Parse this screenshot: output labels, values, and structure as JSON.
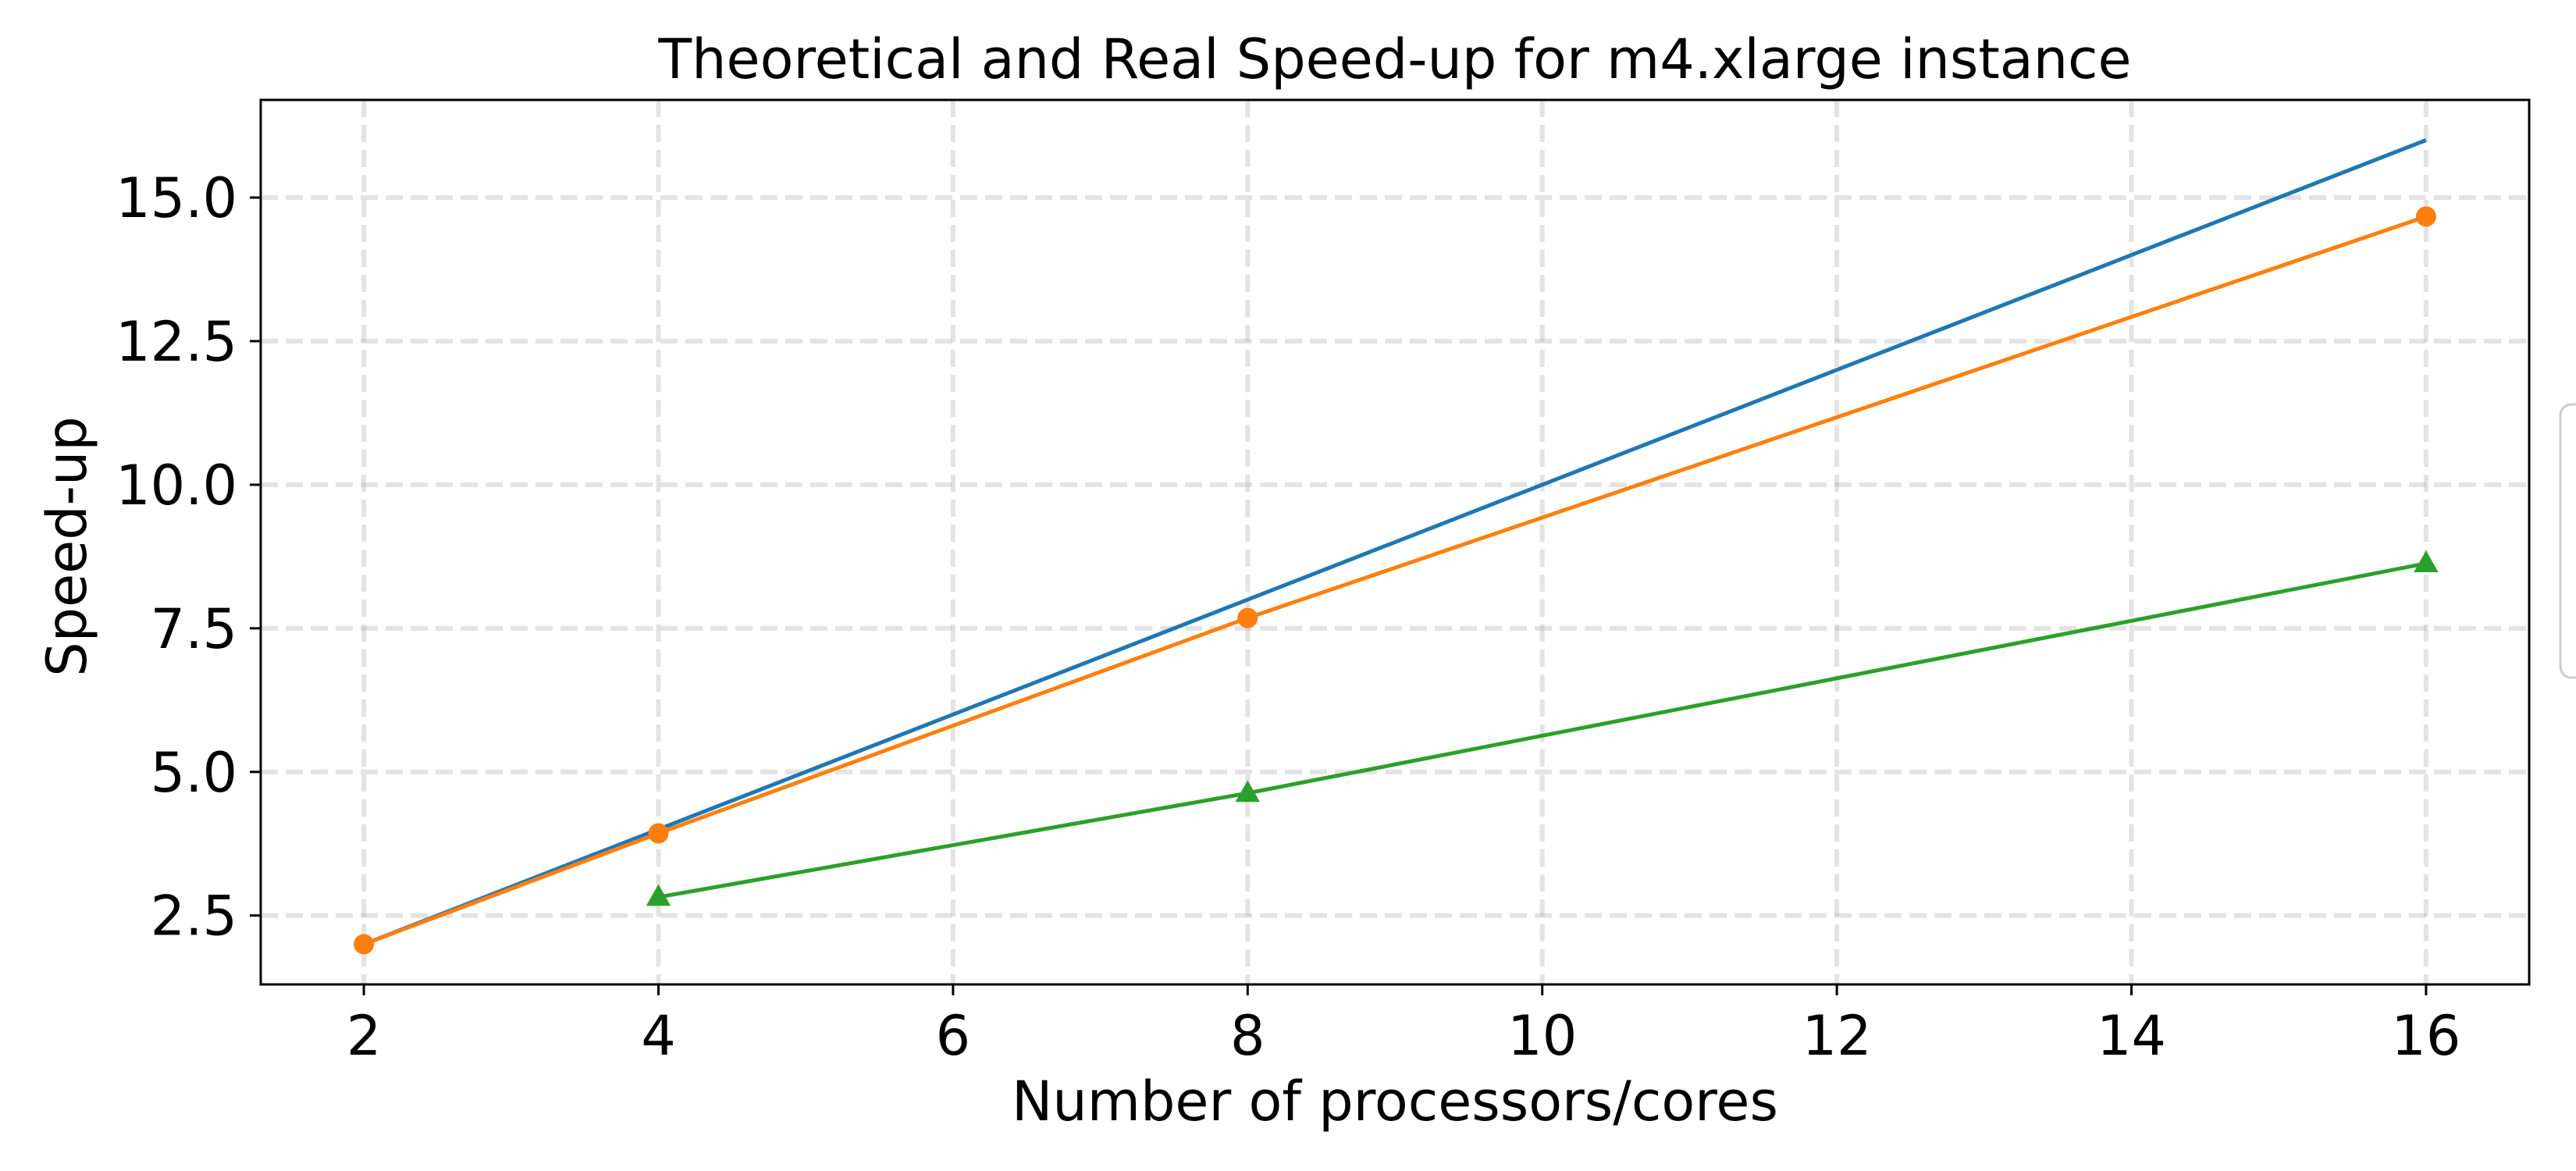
{
  "chart_data": {
    "type": "line",
    "title": "Theoretical and Real Speed-up for m4.xlarge instance",
    "xlabel": "Number of processors/cores",
    "ylabel": "Speed-up",
    "xlim": [
      1.3,
      16.7
    ],
    "ylim": [
      1.3,
      16.7
    ],
    "xticks": [
      2,
      4,
      6,
      8,
      10,
      12,
      14,
      16
    ],
    "yticks": [
      2.5,
      5.0,
      7.5,
      10.0,
      12.5,
      15.0
    ],
    "xtick_labels": [
      "2",
      "4",
      "6",
      "8",
      "10",
      "12",
      "14",
      "16"
    ],
    "ytick_labels": [
      "2.5",
      "5.0",
      "7.5",
      "10.0",
      "12.5",
      "15.0"
    ],
    "grid": true,
    "legend_placement": "right, partially outside plot",
    "series": [
      {
        "x": [
          2,
          16
        ],
        "y": [
          2.0,
          16.0
        ],
        "color": "#1f77b4",
        "marker": "none"
      },
      {
        "x": [
          2,
          4,
          8,
          16
        ],
        "y": [
          2.0,
          3.93,
          7.68,
          14.67
        ],
        "color": "#ff7f0e",
        "marker": "circle"
      },
      {
        "x": [
          4,
          8,
          16
        ],
        "y": [
          2.82,
          4.63,
          8.63
        ],
        "color": "#2ca02c",
        "marker": "triangle"
      }
    ]
  }
}
